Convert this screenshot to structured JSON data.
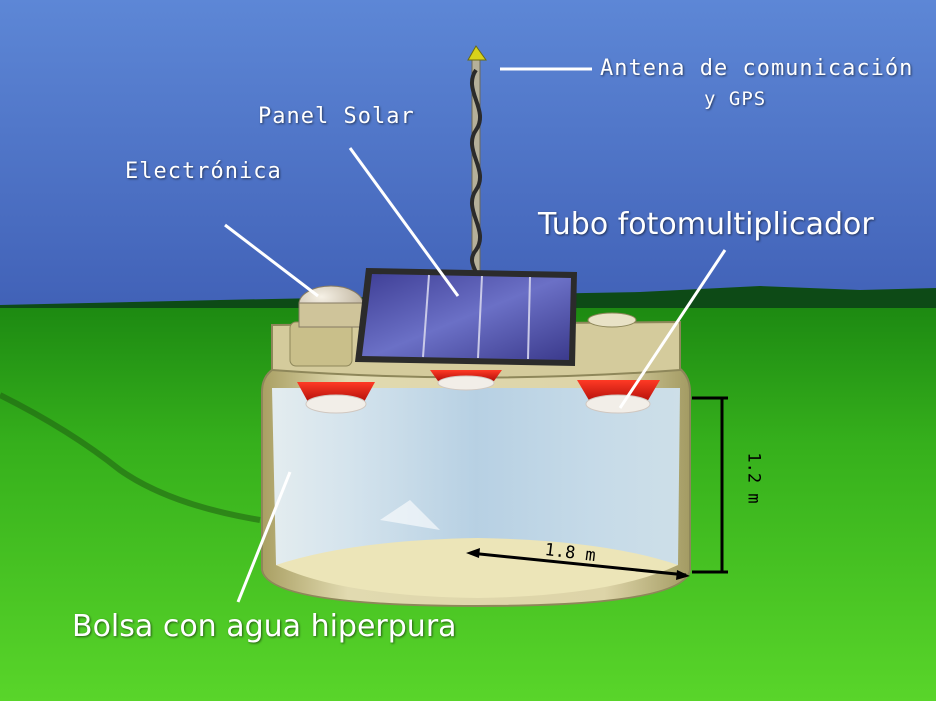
{
  "labels": {
    "antenna_line1": "Antena de comunicación",
    "antenna_line2": "y GPS",
    "solar_panel": "Panel Solar",
    "electronics": "Electrónica",
    "pmt": "Tubo fotomultiplicador",
    "water_bag": "Bolsa con agua hiperpura"
  },
  "dimensions": {
    "width": "1.8 m",
    "height": "1.2 m"
  },
  "colors": {
    "sky": "#4f7fd0",
    "grass": "#3fbf1f",
    "tank": "#dcd5a4",
    "pmt": "#e41a12",
    "solar_cells": "#4a4fa8",
    "water": "#c6dcea"
  }
}
